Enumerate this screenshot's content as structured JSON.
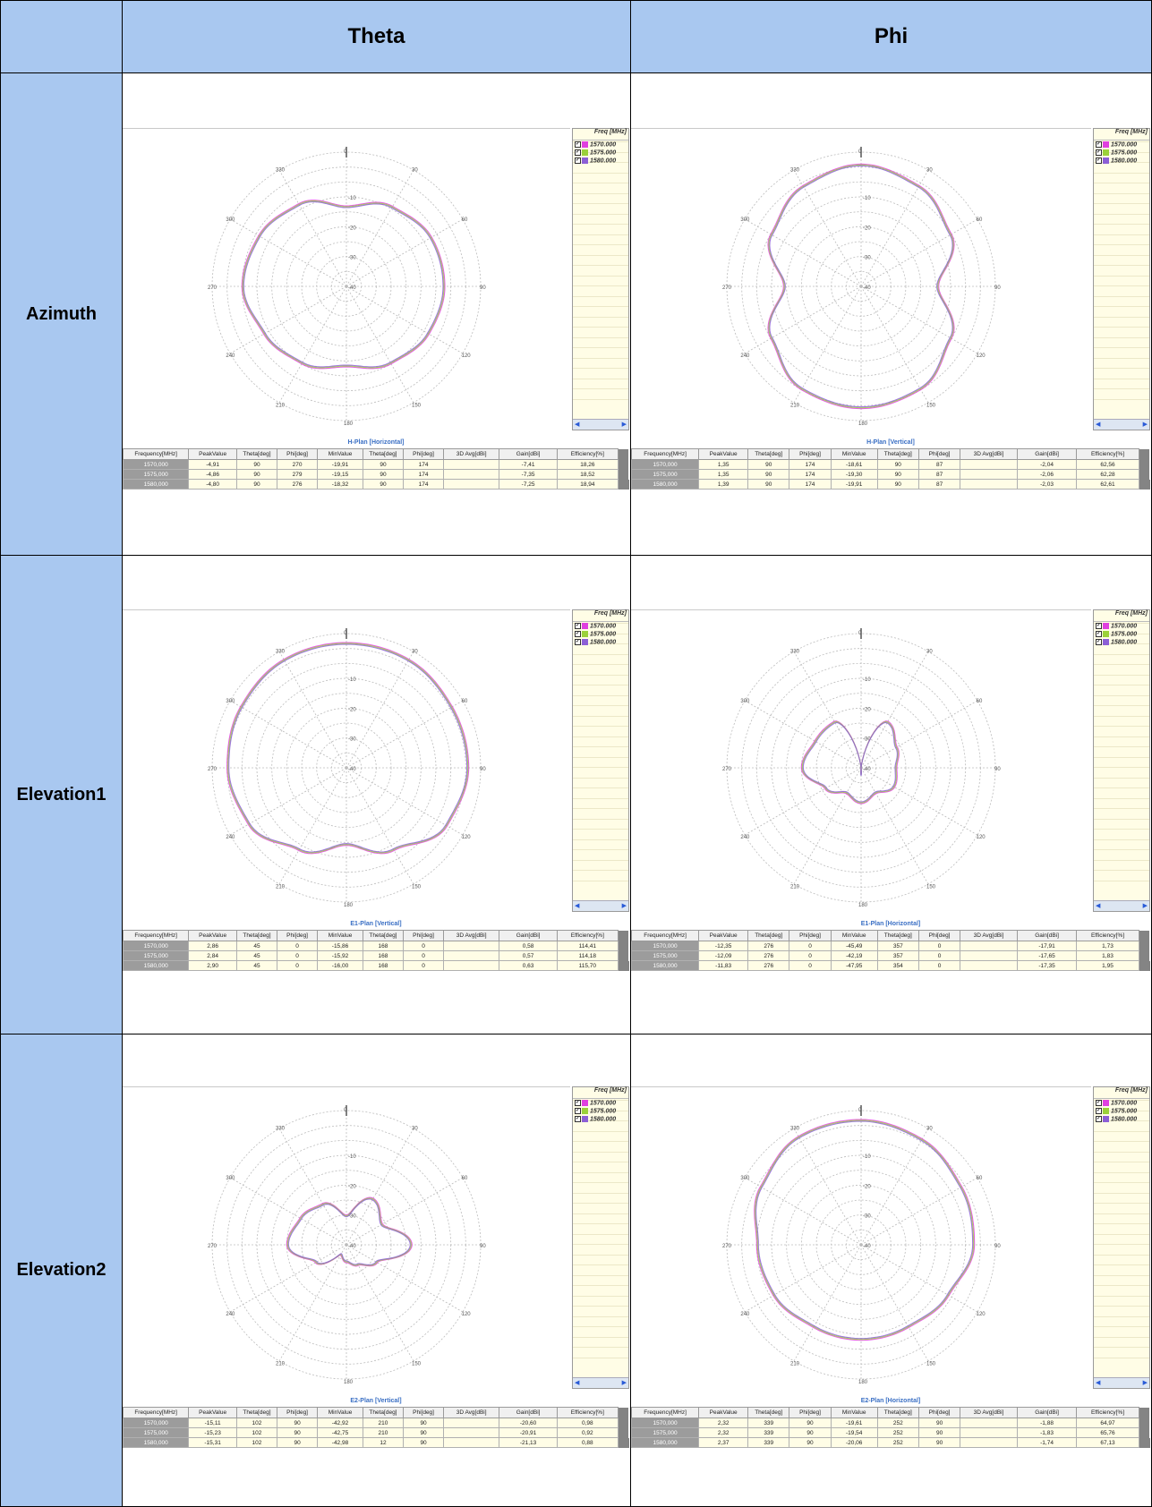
{
  "headers": {
    "corner": "",
    "theta": "Theta",
    "phi": "Phi"
  },
  "rows": [
    "Azimuth",
    "Elevation1",
    "Elevation2"
  ],
  "legend": {
    "header": "Freq [MHz]",
    "items": [
      {
        "label": "1570.000",
        "color": "#e040e0"
      },
      {
        "label": "1575.000",
        "color": "#9bd13a"
      },
      {
        "label": "1580.000",
        "color": "#8c5fd6"
      }
    ]
  },
  "polar_ticks": {
    "angles": [
      "0",
      "30",
      "60",
      "90",
      "120",
      "150",
      "180",
      "210",
      "240",
      "270",
      "300",
      "330"
    ],
    "rings": [
      "-10",
      "-20",
      "-30",
      "-40"
    ]
  },
  "table_headers": [
    "Frequency[MHz]",
    "PeakValue",
    "Theta[deg]",
    "Phi[deg]",
    "MinValue",
    "Theta[deg]",
    "Phi[deg]",
    "3D Avg[dBi]",
    "Gain[dBi]",
    "Efficiency[%]"
  ],
  "panels": [
    {
      "id": "az-theta",
      "title": "H-Plan [Horizontal]",
      "rows": [
        [
          "1570,000",
          "-4,91",
          "90",
          "270",
          "-19,91",
          "90",
          "174",
          "",
          "-7,41",
          "18,26"
        ],
        [
          "1575,000",
          "-4,86",
          "90",
          "279",
          "-19,15",
          "90",
          "174",
          "",
          "-7,35",
          "18,52"
        ],
        [
          "1580,000",
          "-4,80",
          "90",
          "276",
          "-18,32",
          "90",
          "174",
          "",
          "-7,25",
          "18,94"
        ]
      ]
    },
    {
      "id": "az-phi",
      "title": "H-Plan [Vertical]",
      "rows": [
        [
          "1570,000",
          "1,35",
          "90",
          "174",
          "-18,61",
          "90",
          "87",
          "",
          "-2,04",
          "62,56"
        ],
        [
          "1575,000",
          "1,35",
          "90",
          "174",
          "-19,30",
          "90",
          "87",
          "",
          "-2,06",
          "62,28"
        ],
        [
          "1580,000",
          "1,39",
          "90",
          "174",
          "-19,91",
          "90",
          "87",
          "",
          "-2,03",
          "62,61"
        ]
      ]
    },
    {
      "id": "el1-theta",
      "title": "E1-Plan [Vertical]",
      "rows": [
        [
          "1570,000",
          "2,86",
          "45",
          "0",
          "-15,86",
          "168",
          "0",
          "",
          "0,58",
          "114,41"
        ],
        [
          "1575,000",
          "2,84",
          "45",
          "0",
          "-15,92",
          "168",
          "0",
          "",
          "0,57",
          "114,18"
        ],
        [
          "1580,000",
          "2,90",
          "45",
          "0",
          "-16,00",
          "168",
          "0",
          "",
          "0,63",
          "115,70"
        ]
      ]
    },
    {
      "id": "el1-phi",
      "title": "E1-Plan [Horizontal]",
      "rows": [
        [
          "1570,000",
          "-12,35",
          "276",
          "0",
          "-45,49",
          "357",
          "0",
          "",
          "-17,91",
          "1,73"
        ],
        [
          "1575,000",
          "-12,09",
          "276",
          "0",
          "-42,19",
          "357",
          "0",
          "",
          "-17,65",
          "1,83"
        ],
        [
          "1580,000",
          "-11,83",
          "276",
          "0",
          "-47,95",
          "354",
          "0",
          "",
          "-17,35",
          "1,95"
        ]
      ]
    },
    {
      "id": "el2-theta",
      "title": "E2-Plan [Vertical]",
      "rows": [
        [
          "1570,000",
          "-15,11",
          "102",
          "90",
          "-42,92",
          "210",
          "90",
          "",
          "-20,60",
          "0,98"
        ],
        [
          "1575,000",
          "-15,23",
          "102",
          "90",
          "-42,75",
          "210",
          "90",
          "",
          "-20,91",
          "0,92"
        ],
        [
          "1580,000",
          "-15,31",
          "102",
          "90",
          "-42,98",
          "12",
          "90",
          "",
          "-21,13",
          "0,88"
        ]
      ]
    },
    {
      "id": "el2-phi",
      "title": "E2-Plan [Horizontal]",
      "rows": [
        [
          "1570,000",
          "2,32",
          "339",
          "90",
          "-19,61",
          "252",
          "90",
          "",
          "-1,88",
          "64,97"
        ],
        [
          "1575,000",
          "2,32",
          "339",
          "90",
          "-19,54",
          "252",
          "90",
          "",
          "-1,83",
          "65,76"
        ],
        [
          "1580,000",
          "2,37",
          "339",
          "90",
          "-20,06",
          "252",
          "90",
          "",
          "-1,74",
          "67,13"
        ]
      ]
    }
  ],
  "chart_data": [
    {
      "type": "polar-line",
      "panel": "az-theta",
      "angles_deg": [
        0,
        30,
        60,
        90,
        120,
        150,
        180,
        210,
        240,
        270,
        300,
        330
      ],
      "series": [
        {
          "name": "1570.000",
          "values": [
            -13,
            -9,
            -7,
            -7,
            -8,
            -10,
            -13,
            -10,
            -8,
            -5,
            -6,
            -8
          ]
        },
        {
          "name": "1575.000",
          "values": [
            -13,
            -9,
            -7,
            -7,
            -8,
            -10,
            -13,
            -10,
            -8,
            -5,
            -6,
            -8
          ]
        },
        {
          "name": "1580.000",
          "values": [
            -13,
            -9,
            -7,
            -7,
            -8,
            -10,
            -13,
            -10,
            -8,
            -5,
            -6,
            -8
          ]
        }
      ]
    },
    {
      "type": "polar-line",
      "panel": "az-phi",
      "angles_deg": [
        0,
        30,
        60,
        90,
        120,
        150,
        180,
        210,
        240,
        270,
        300,
        330
      ],
      "series": [
        {
          "name": "1570.000",
          "values": [
            1,
            -1,
            -5,
            -14,
            -5,
            0,
            1,
            0,
            -5,
            -14,
            -5,
            -1
          ]
        },
        {
          "name": "1575.000",
          "values": [
            1,
            -1,
            -5,
            -14,
            -5,
            0,
            1,
            0,
            -5,
            -14,
            -5,
            -1
          ]
        },
        {
          "name": "1580.000",
          "values": [
            1,
            -1,
            -5,
            -14,
            -5,
            0,
            1,
            0,
            -5,
            -14,
            -5,
            -1
          ]
        }
      ]
    },
    {
      "type": "polar-line",
      "panel": "el1-theta",
      "angles_deg": [
        0,
        30,
        60,
        90,
        120,
        150,
        180,
        210,
        240,
        270,
        300,
        330
      ],
      "series": [
        {
          "name": "1570.000",
          "values": [
            2,
            2,
            1,
            1,
            -1,
            -8,
            -14,
            -8,
            -2,
            0,
            1,
            2
          ]
        },
        {
          "name": "1575.000",
          "values": [
            2,
            2,
            1,
            1,
            -1,
            -8,
            -14,
            -8,
            -2,
            0,
            1,
            2
          ]
        },
        {
          "name": "1580.000",
          "values": [
            2,
            2,
            1,
            1,
            -1,
            -8,
            -14,
            -8,
            -2,
            0,
            1,
            2
          ]
        }
      ]
    },
    {
      "type": "polar-line",
      "panel": "el1-phi",
      "angles_deg": [
        0,
        30,
        60,
        90,
        120,
        150,
        180,
        210,
        240,
        270,
        300,
        330
      ],
      "series": [
        {
          "name": "1570.000",
          "values": [
            -42,
            -22,
            -26,
            -28,
            -27,
            -30,
            -28,
            -30,
            -26,
            -20,
            -22,
            -22
          ]
        },
        {
          "name": "1575.000",
          "values": [
            -42,
            -22,
            -26,
            -28,
            -27,
            -30,
            -28,
            -30,
            -26,
            -20,
            -22,
            -22
          ]
        },
        {
          "name": "1580.000",
          "values": [
            -42,
            -22,
            -26,
            -28,
            -27,
            -30,
            -28,
            -30,
            -26,
            -20,
            -22,
            -22
          ]
        }
      ]
    },
    {
      "type": "polar-line",
      "panel": "el2-theta",
      "angles_deg": [
        0,
        30,
        60,
        90,
        120,
        150,
        180,
        210,
        240,
        270,
        300,
        330
      ],
      "series": [
        {
          "name": "1570.000",
          "values": [
            -30,
            -22,
            -26,
            -18,
            -28,
            -32,
            -34,
            -36,
            -28,
            -20,
            -22,
            -24
          ]
        },
        {
          "name": "1575.000",
          "values": [
            -30,
            -22,
            -26,
            -18,
            -28,
            -32,
            -34,
            -36,
            -28,
            -20,
            -22,
            -24
          ]
        },
        {
          "name": "1580.000",
          "values": [
            -30,
            -22,
            -26,
            -18,
            -28,
            -32,
            -34,
            -36,
            -28,
            -20,
            -22,
            -24
          ]
        }
      ]
    },
    {
      "type": "polar-line",
      "panel": "el2-phi",
      "angles_deg": [
        0,
        30,
        60,
        90,
        120,
        150,
        180,
        210,
        240,
        270,
        300,
        330
      ],
      "series": [
        {
          "name": "1570.000",
          "values": [
            2,
            1,
            -1,
            -2,
            -6,
            -8,
            -8,
            -8,
            -6,
            -5,
            -1,
            2
          ]
        },
        {
          "name": "1575.000",
          "values": [
            2,
            1,
            -1,
            -2,
            -6,
            -8,
            -8,
            -8,
            -6,
            -5,
            -1,
            2
          ]
        },
        {
          "name": "1580.000",
          "values": [
            2,
            1,
            -1,
            -2,
            -6,
            -8,
            -8,
            -8,
            -6,
            -5,
            -1,
            2
          ]
        }
      ]
    }
  ]
}
